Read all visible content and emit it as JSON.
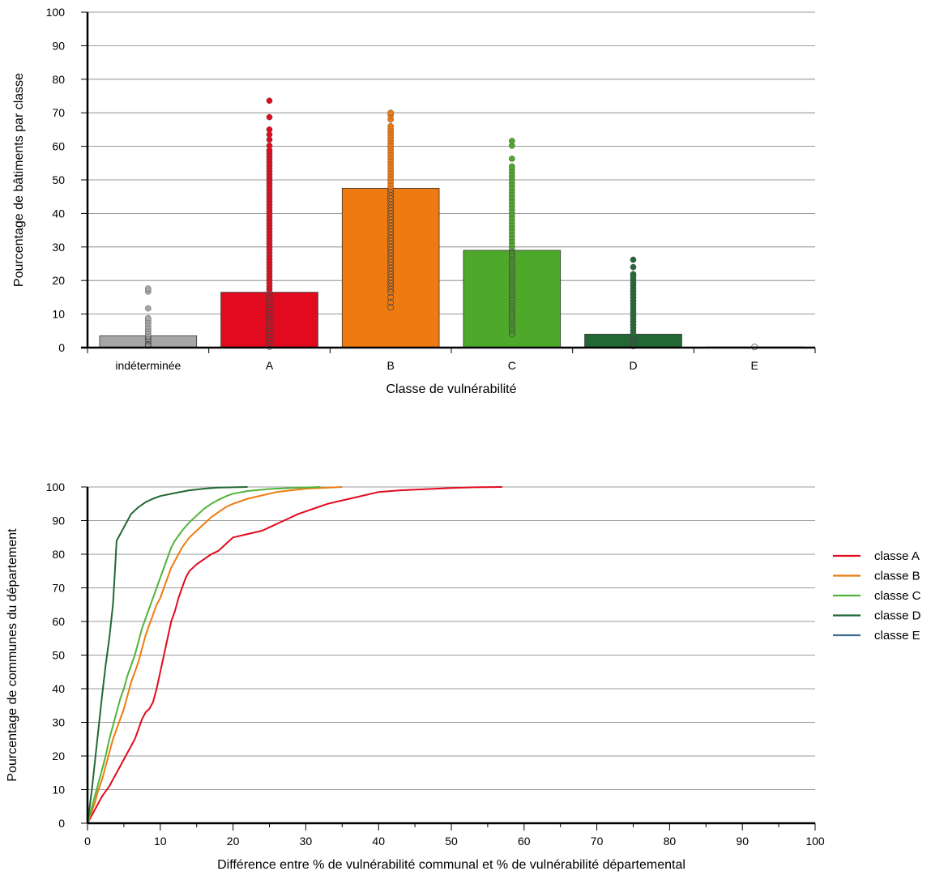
{
  "chart_data": [
    {
      "type": "bar",
      "xlabel": "Classe de vulnérabilité",
      "ylabel": "Pourcentage de bâtiments par classe",
      "ylim": [
        0,
        100
      ],
      "yticks": [
        0,
        10,
        20,
        30,
        40,
        50,
        60,
        70,
        80,
        90,
        100
      ],
      "grid": true,
      "categories": [
        "indéterminée",
        "A",
        "B",
        "C",
        "D",
        "E"
      ],
      "values": [
        3.5,
        16.5,
        47.5,
        29,
        4,
        0.2
      ],
      "colors": [
        "#a6a6a6",
        "#e10a1e",
        "#ee7b12",
        "#4ea82a",
        "#216834",
        "#2f6ea6"
      ],
      "scatter_points": [
        [
          0.6,
          1.0,
          1.8,
          2.5,
          3.2,
          4.0,
          4.8,
          5.5,
          6.3,
          7.2,
          8.0,
          8.8,
          11.7,
          16.7,
          17.6
        ],
        [
          0.3,
          1.2,
          2.1,
          3.0,
          3.9,
          4.8,
          5.7,
          6.6,
          7.5,
          8.4,
          9.3,
          10.2,
          11.1,
          12.0,
          12.9,
          13.8,
          14.7,
          15.6,
          16.5,
          17.4,
          18.3,
          19.2,
          20.1,
          21.0,
          21.9,
          22.8,
          23.7,
          24.6,
          25.5,
          26.4,
          27.3,
          28.2,
          29.1,
          30.0,
          30.9,
          31.8,
          32.7,
          33.6,
          34.5,
          35.4,
          36.3,
          37.2,
          38.1,
          39.0,
          39.9,
          40.8,
          41.7,
          42.6,
          43.5,
          44.4,
          45.3,
          46.2,
          47.1,
          48.0,
          48.9,
          49.8,
          50.7,
          51.6,
          52.5,
          53.4,
          54.3,
          55.2,
          56.1,
          57.0,
          57.9,
          58.8,
          60.2,
          62.0,
          63.5,
          65.0,
          68.7,
          73.6
        ],
        [
          12.0,
          13.5,
          15.0,
          16.5,
          17.4,
          18.3,
          19.2,
          20.1,
          21.0,
          21.9,
          22.8,
          23.7,
          24.6,
          25.5,
          26.4,
          27.3,
          28.2,
          29.1,
          30.0,
          30.9,
          31.8,
          32.7,
          33.6,
          34.5,
          35.4,
          36.3,
          37.2,
          38.1,
          39.0,
          39.9,
          40.8,
          41.7,
          42.6,
          43.5,
          44.4,
          45.3,
          46.2,
          47.1,
          48.0,
          48.9,
          49.8,
          50.7,
          51.6,
          52.5,
          53.4,
          54.3,
          55.2,
          56.1,
          57.0,
          57.9,
          58.8,
          59.7,
          60.6,
          61.5,
          62.4,
          63.3,
          64.2,
          65.1,
          66.0,
          68.0,
          69.3,
          70.0
        ],
        [
          4.0,
          5.0,
          6.0,
          7.0,
          8.0,
          9.0,
          10.0,
          11.0,
          12.0,
          13.0,
          14.0,
          15.0,
          16.0,
          17.0,
          18.0,
          19.0,
          20.0,
          21.0,
          22.0,
          23.0,
          24.0,
          25.0,
          26.0,
          27.0,
          28.0,
          29.0,
          30.0,
          31.0,
          32.0,
          33.0,
          34.0,
          35.0,
          36.0,
          37.0,
          38.0,
          39.0,
          40.0,
          41.0,
          42.0,
          43.0,
          44.0,
          45.0,
          46.0,
          47.0,
          48.0,
          49.0,
          50.0,
          51.0,
          52.0,
          53.0,
          54.0,
          56.3,
          60.2,
          61.6
        ],
        [
          0.5,
          1.4,
          2.3,
          3.2,
          4.1,
          5.0,
          5.9,
          6.8,
          7.7,
          8.6,
          9.5,
          10.4,
          11.3,
          12.2,
          13.1,
          14.0,
          14.9,
          15.8,
          16.7,
          17.6,
          18.5,
          19.4,
          20.3,
          21.2,
          21.9,
          24.0,
          26.2
        ],
        [
          0.2
        ]
      ]
    },
    {
      "type": "line",
      "xlabel": "Différence entre % de vulnérabilité communal et % de vulnérabilité départemental",
      "ylabel": "Pourcentage de communes du département",
      "xlim": [
        0,
        100
      ],
      "ylim": [
        0,
        100
      ],
      "xticks": [
        0,
        10,
        20,
        30,
        40,
        50,
        60,
        70,
        80,
        90,
        100
      ],
      "yticks": [
        0,
        10,
        20,
        30,
        40,
        50,
        60,
        70,
        80,
        90,
        100
      ],
      "grid": true,
      "legend": "right",
      "series": [
        {
          "name": "classe A",
          "color": "#e10a1e",
          "points": [
            [
              0,
              0
            ],
            [
              0.5,
              2
            ],
            [
              1,
              4
            ],
            [
              1.5,
              6
            ],
            [
              2,
              8
            ],
            [
              2.5,
              9.5
            ],
            [
              3,
              11
            ],
            [
              3.5,
              13
            ],
            [
              4,
              15
            ],
            [
              4.5,
              17
            ],
            [
              5,
              19
            ],
            [
              5.5,
              21
            ],
            [
              6,
              23
            ],
            [
              6.5,
              25
            ],
            [
              7,
              28
            ],
            [
              7.5,
              31
            ],
            [
              8,
              33
            ],
            [
              8.5,
              34
            ],
            [
              9,
              36
            ],
            [
              9.5,
              40
            ],
            [
              10,
              45
            ],
            [
              10.5,
              50
            ],
            [
              11,
              55
            ],
            [
              11.5,
              60
            ],
            [
              12,
              63
            ],
            [
              12.5,
              67
            ],
            [
              13,
              70
            ],
            [
              13.5,
              73
            ],
            [
              14,
              75
            ],
            [
              15,
              77
            ],
            [
              16,
              78.5
            ],
            [
              17,
              80
            ],
            [
              18,
              81
            ],
            [
              19,
              83
            ],
            [
              20,
              85
            ],
            [
              22,
              86
            ],
            [
              24,
              87
            ],
            [
              25,
              88
            ],
            [
              27,
              90
            ],
            [
              29,
              92
            ],
            [
              31,
              93.5
            ],
            [
              33,
              95
            ],
            [
              35,
              96
            ],
            [
              37,
              97
            ],
            [
              40,
              98.5
            ],
            [
              43,
              99
            ],
            [
              47,
              99.4
            ],
            [
              50,
              99.7
            ],
            [
              53,
              99.9
            ],
            [
              57,
              100
            ]
          ]
        },
        {
          "name": "classe B",
          "color": "#ee7b12",
          "points": [
            [
              0,
              0
            ],
            [
              0.5,
              3
            ],
            [
              1,
              6
            ],
            [
              1.5,
              10
            ],
            [
              2,
              13
            ],
            [
              2.5,
              17
            ],
            [
              3,
              21
            ],
            [
              3.5,
              25
            ],
            [
              4,
              28
            ],
            [
              4.5,
              31
            ],
            [
              5,
              34
            ],
            [
              5.5,
              38
            ],
            [
              6,
              42
            ],
            [
              6.5,
              45
            ],
            [
              7,
              48
            ],
            [
              7.5,
              52
            ],
            [
              8,
              56
            ],
            [
              8.5,
              59
            ],
            [
              9,
              62
            ],
            [
              9.5,
              65
            ],
            [
              10,
              67
            ],
            [
              10.5,
              70
            ],
            [
              11,
              73
            ],
            [
              11.5,
              76
            ],
            [
              12,
              78
            ],
            [
              12.5,
              80
            ],
            [
              13,
              82
            ],
            [
              14,
              85
            ],
            [
              15,
              87
            ],
            [
              16,
              89
            ],
            [
              17,
              91
            ],
            [
              18,
              92.5
            ],
            [
              19,
              94
            ],
            [
              20,
              95
            ],
            [
              22,
              96.5
            ],
            [
              24,
              97.5
            ],
            [
              26,
              98.5
            ],
            [
              28,
              99
            ],
            [
              30,
              99.5
            ],
            [
              32,
              99.7
            ],
            [
              35,
              100
            ]
          ]
        },
        {
          "name": "classe C",
          "color": "#52b33a",
          "points": [
            [
              0,
              0
            ],
            [
              0.5,
              4
            ],
            [
              1,
              8
            ],
            [
              1.5,
              12
            ],
            [
              2,
              16
            ],
            [
              2.5,
              20
            ],
            [
              3,
              25
            ],
            [
              3.5,
              29
            ],
            [
              4,
              33
            ],
            [
              4.5,
              37
            ],
            [
              5,
              40
            ],
            [
              5.5,
              44
            ],
            [
              6,
              47
            ],
            [
              6.5,
              50
            ],
            [
              7,
              54
            ],
            [
              7.5,
              58
            ],
            [
              8,
              61
            ],
            [
              8.5,
              64
            ],
            [
              9,
              67
            ],
            [
              9.5,
              70
            ],
            [
              10,
              73
            ],
            [
              10.5,
              76
            ],
            [
              11,
              79
            ],
            [
              11.5,
              82
            ],
            [
              12,
              84
            ],
            [
              13,
              87
            ],
            [
              14,
              89.5
            ],
            [
              15,
              91.5
            ],
            [
              16,
              93.5
            ],
            [
              17,
              95
            ],
            [
              18,
              96.2
            ],
            [
              19,
              97.2
            ],
            [
              20,
              98
            ],
            [
              22,
              98.8
            ],
            [
              25,
              99.4
            ],
            [
              28,
              99.7
            ],
            [
              32,
              100
            ]
          ]
        },
        {
          "name": "classe D",
          "color": "#216834",
          "points": [
            [
              0,
              0
            ],
            [
              0.3,
              5
            ],
            [
              0.6,
              10
            ],
            [
              1,
              18
            ],
            [
              1.5,
              28
            ],
            [
              2,
              38
            ],
            [
              2.5,
              47
            ],
            [
              3,
              55
            ],
            [
              3.5,
              65
            ],
            [
              3.8,
              76
            ],
            [
              4,
              84
            ],
            [
              4.5,
              86
            ],
            [
              5,
              88
            ],
            [
              5.5,
              90
            ],
            [
              6,
              92
            ],
            [
              7,
              94
            ],
            [
              8,
              95.5
            ],
            [
              9,
              96.5
            ],
            [
              10,
              97.3
            ],
            [
              12,
              98.2
            ],
            [
              14,
              99
            ],
            [
              16,
              99.5
            ],
            [
              18,
              99.8
            ],
            [
              22,
              100
            ]
          ]
        },
        {
          "name": "classe E",
          "color": "#3c6993",
          "points": [
            [
              0,
              0
            ],
            [
              0,
              100
            ]
          ]
        }
      ]
    }
  ]
}
